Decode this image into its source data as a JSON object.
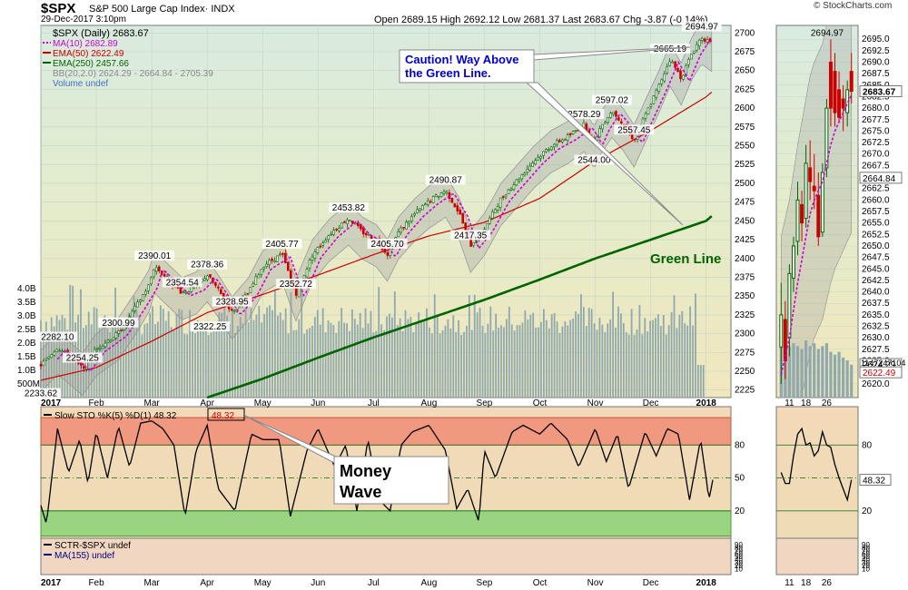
{
  "header": {
    "symbol": "$SPX",
    "name": "S&P 500 Large Cap Index· INDX",
    "date": "29-Dec-2017 3:10pm",
    "ohlc": "Open 2689.15  High 2692.12  Low 2681.37  Last 2683.67  Chg -3.87 (-0.14%)",
    "credit": "© StockCharts.com"
  },
  "legend": [
    {
      "text": "$SPX (Daily) 2683.67",
      "color": "#000000"
    },
    {
      "text": "MA(10) 2682.89",
      "color": "#d000d0"
    },
    {
      "text": "EMA(50) 2622.49",
      "color": "#cc0000"
    },
    {
      "text": "EMA(250) 2457.66",
      "color": "#006400"
    },
    {
      "text": "BB(20,2.0) 2624.29 - 2664.84 - 2705.39",
      "color": "#888888"
    },
    {
      "text": "Volume undef",
      "color": "#4070c0"
    }
  ],
  "annotations": {
    "caution_line1": "Caution! Way Above",
    "caution_line2": "the Green Line.",
    "green_line": "Green Line",
    "money_line1": "Money",
    "money_line2": "Wave"
  },
  "stoch_legend": {
    "text": "Slow STO %K(5) %D(1) 48.32",
    "value_box": "48.32"
  },
  "sctr_legend": {
    "text": "SCTR-$SPX undef",
    "ma": "MA(155) undef"
  },
  "chart_data": [
    {
      "type": "candlestick",
      "title": "$SPX (Daily)",
      "x_labels": [
        "2017",
        "Feb",
        "Mar",
        "Apr",
        "May",
        "Jun",
        "Jul",
        "Aug",
        "Sep",
        "Oct",
        "Nov",
        "Dec",
        "2018"
      ],
      "ylim": [
        2215,
        2710
      ],
      "y_ticks": [
        2225,
        2250,
        2275,
        2300,
        2325,
        2350,
        2375,
        2400,
        2425,
        2450,
        2475,
        2500,
        2525,
        2550,
        2575,
        2600,
        2625,
        2650,
        2675,
        2700
      ],
      "close_path": [
        {
          "m": 0.0,
          "v": 2258
        },
        {
          "m": 0.3,
          "v": 2282.1
        },
        {
          "m": 0.5,
          "v": 2270
        },
        {
          "m": 0.75,
          "v": 2254.25
        },
        {
          "m": 1.0,
          "v": 2280
        },
        {
          "m": 1.4,
          "v": 2300.99
        },
        {
          "m": 1.75,
          "v": 2340
        },
        {
          "m": 1.95,
          "v": 2365
        },
        {
          "m": 2.05,
          "v": 2390.01
        },
        {
          "m": 2.3,
          "v": 2372
        },
        {
          "m": 2.55,
          "v": 2354.54
        },
        {
          "m": 2.8,
          "v": 2362
        },
        {
          "m": 3.0,
          "v": 2378.36
        },
        {
          "m": 3.2,
          "v": 2358
        },
        {
          "m": 3.45,
          "v": 2328.95
        },
        {
          "m": 3.75,
          "v": 2355
        },
        {
          "m": 4.0,
          "v": 2390
        },
        {
          "m": 4.35,
          "v": 2405.77
        },
        {
          "m": 4.6,
          "v": 2352.72
        },
        {
          "m": 4.9,
          "v": 2405
        },
        {
          "m": 5.2,
          "v": 2432
        },
        {
          "m": 5.55,
          "v": 2453.82
        },
        {
          "m": 5.8,
          "v": 2435
        },
        {
          "m": 6.05,
          "v": 2425
        },
        {
          "m": 6.25,
          "v": 2405.7
        },
        {
          "m": 6.45,
          "v": 2435
        },
        {
          "m": 6.75,
          "v": 2460
        },
        {
          "m": 7.0,
          "v": 2476
        },
        {
          "m": 7.3,
          "v": 2490.87
        },
        {
          "m": 7.55,
          "v": 2460
        },
        {
          "m": 7.75,
          "v": 2417.35
        },
        {
          "m": 8.0,
          "v": 2440
        },
        {
          "m": 8.3,
          "v": 2480
        },
        {
          "m": 8.6,
          "v": 2505
        },
        {
          "m": 8.9,
          "v": 2530
        },
        {
          "m": 9.2,
          "v": 2550
        },
        {
          "m": 9.5,
          "v": 2562
        },
        {
          "m": 9.8,
          "v": 2578.29
        },
        {
          "m": 9.98,
          "v": 2555
        },
        {
          "m": 10.1,
          "v": 2575
        },
        {
          "m": 10.3,
          "v": 2597.02
        },
        {
          "m": 10.5,
          "v": 2580
        },
        {
          "m": 10.7,
          "v": 2557.45
        },
        {
          "m": 10.9,
          "v": 2590
        },
        {
          "m": 11.15,
          "v": 2630
        },
        {
          "m": 11.35,
          "v": 2665.19
        },
        {
          "m": 11.55,
          "v": 2640
        },
        {
          "m": 11.75,
          "v": 2675
        },
        {
          "m": 11.92,
          "v": 2694.97
        },
        {
          "m": 12.0,
          "v": 2690
        },
        {
          "m": 12.12,
          "v": 2683.67
        }
      ],
      "price_labels": [
        {
          "m": 0.3,
          "v": 2282.1,
          "text": "2282.10"
        },
        {
          "m": 0.75,
          "v": 2254.25,
          "text": "2254.25"
        },
        {
          "m": 0.0,
          "v": 2233.62,
          "text": "2233.62"
        },
        {
          "m": 1.4,
          "v": 2300.99,
          "text": "2300.99"
        },
        {
          "m": 2.05,
          "v": 2390.01,
          "text": "2390.01"
        },
        {
          "m": 2.55,
          "v": 2354.54,
          "text": "2354.54"
        },
        {
          "m": 3.0,
          "v": 2378.36,
          "text": "2378.36"
        },
        {
          "m": 3.05,
          "v": 2322.25,
          "text": "2322.25"
        },
        {
          "m": 3.45,
          "v": 2328.95,
          "text": "2328.95"
        },
        {
          "m": 4.35,
          "v": 2405.77,
          "text": "2405.77"
        },
        {
          "m": 4.6,
          "v": 2352.72,
          "text": "2352.72"
        },
        {
          "m": 5.55,
          "v": 2453.82,
          "text": "2453.82"
        },
        {
          "m": 6.25,
          "v": 2405.7,
          "text": "2405.70"
        },
        {
          "m": 7.3,
          "v": 2490.87,
          "text": "2490.87"
        },
        {
          "m": 7.75,
          "v": 2417.35,
          "text": "2417.35"
        },
        {
          "m": 9.98,
          "v": 2544.0,
          "text": "2544.00"
        },
        {
          "m": 9.8,
          "v": 2578.29,
          "text": "2578.29"
        },
        {
          "m": 10.3,
          "v": 2597.02,
          "text": "2597.02"
        },
        {
          "m": 10.7,
          "v": 2557.45,
          "text": "2557.45"
        },
        {
          "m": 11.35,
          "v": 2665.19,
          "text": "2665.19"
        },
        {
          "m": 11.92,
          "v": 2694.97,
          "text": "2694.97"
        }
      ],
      "ma10_offset": -8,
      "ema50_path": [
        {
          "m": 0.0,
          "v": 2238
        },
        {
          "m": 1.0,
          "v": 2255
        },
        {
          "m": 2.0,
          "v": 2290
        },
        {
          "m": 3.0,
          "v": 2328
        },
        {
          "m": 4.0,
          "v": 2352
        },
        {
          "m": 5.0,
          "v": 2378
        },
        {
          "m": 6.0,
          "v": 2405
        },
        {
          "m": 7.0,
          "v": 2430
        },
        {
          "m": 8.0,
          "v": 2448
        },
        {
          "m": 9.0,
          "v": 2480
        },
        {
          "m": 10.0,
          "v": 2530
        },
        {
          "m": 11.0,
          "v": 2570
        },
        {
          "m": 12.0,
          "v": 2615
        },
        {
          "m": 12.12,
          "v": 2622.49
        }
      ],
      "ema250_path": [
        {
          "m": 3.0,
          "v": 2215
        },
        {
          "m": 4.0,
          "v": 2240
        },
        {
          "m": 5.0,
          "v": 2268
        },
        {
          "m": 6.0,
          "v": 2295
        },
        {
          "m": 7.0,
          "v": 2320
        },
        {
          "m": 8.0,
          "v": 2345
        },
        {
          "m": 9.0,
          "v": 2372
        },
        {
          "m": 10.0,
          "v": 2400
        },
        {
          "m": 11.0,
          "v": 2425
        },
        {
          "m": 12.0,
          "v": 2450
        },
        {
          "m": 12.12,
          "v": 2457.66
        }
      ],
      "bb_half_width": 28,
      "volume_ticks": [
        "4.0B",
        "3.5B",
        "3.0B",
        "2.5B",
        "2.0B",
        "1.5B",
        "1.0B",
        "500M"
      ],
      "volume_tick_values": [
        4.0,
        3.5,
        3.0,
        2.5,
        2.0,
        1.5,
        1.0,
        0.5
      ],
      "volume_typical_b": [
        2.3,
        3.4
      ],
      "volume_max_b": 4.2
    },
    {
      "type": "line",
      "title": "Slow STO %K(5) %D(1)",
      "ylim": [
        -5,
        115
      ],
      "y_ticks": [
        80,
        50,
        20
      ],
      "bands": {
        "overbought": [
          80,
          105
        ],
        "oversold": [
          -3,
          20
        ]
      },
      "k_path": [
        {
          "m": 0.0,
          "v": 25
        },
        {
          "m": 0.1,
          "v": 8
        },
        {
          "m": 0.3,
          "v": 95
        },
        {
          "m": 0.5,
          "v": 55
        },
        {
          "m": 0.7,
          "v": 85
        },
        {
          "m": 0.85,
          "v": 45
        },
        {
          "m": 1.0,
          "v": 92
        },
        {
          "m": 1.2,
          "v": 50
        },
        {
          "m": 1.4,
          "v": 97
        },
        {
          "m": 1.6,
          "v": 60
        },
        {
          "m": 1.8,
          "v": 100
        },
        {
          "m": 2.0,
          "v": 102
        },
        {
          "m": 2.2,
          "v": 95
        },
        {
          "m": 2.4,
          "v": 80
        },
        {
          "m": 2.6,
          "v": 15
        },
        {
          "m": 2.8,
          "v": 75
        },
        {
          "m": 3.0,
          "v": 98
        },
        {
          "m": 3.2,
          "v": 40
        },
        {
          "m": 3.5,
          "v": 20
        },
        {
          "m": 3.8,
          "v": 90
        },
        {
          "m": 4.0,
          "v": 85
        },
        {
          "m": 4.3,
          "v": 85
        },
        {
          "m": 4.5,
          "v": 15
        },
        {
          "m": 4.8,
          "v": 75
        },
        {
          "m": 5.0,
          "v": 95
        },
        {
          "m": 5.3,
          "v": 60
        },
        {
          "m": 5.5,
          "v": 80
        },
        {
          "m": 5.7,
          "v": 20
        },
        {
          "m": 5.9,
          "v": 85
        },
        {
          "m": 6.1,
          "v": 30
        },
        {
          "m": 6.3,
          "v": 20
        },
        {
          "m": 6.5,
          "v": 80
        },
        {
          "m": 6.7,
          "v": 92
        },
        {
          "m": 7.0,
          "v": 98
        },
        {
          "m": 7.3,
          "v": 75
        },
        {
          "m": 7.5,
          "v": 22
        },
        {
          "m": 7.7,
          "v": 40
        },
        {
          "m": 7.9,
          "v": 10
        },
        {
          "m": 8.0,
          "v": 75
        },
        {
          "m": 8.2,
          "v": 50
        },
        {
          "m": 8.5,
          "v": 92
        },
        {
          "m": 8.7,
          "v": 98
        },
        {
          "m": 9.0,
          "v": 90
        },
        {
          "m": 9.2,
          "v": 100
        },
        {
          "m": 9.5,
          "v": 85
        },
        {
          "m": 9.7,
          "v": 60
        },
        {
          "m": 10.0,
          "v": 95
        },
        {
          "m": 10.2,
          "v": 65
        },
        {
          "m": 10.4,
          "v": 90
        },
        {
          "m": 10.6,
          "v": 40
        },
        {
          "m": 10.9,
          "v": 92
        },
        {
          "m": 11.1,
          "v": 70
        },
        {
          "m": 11.3,
          "v": 95
        },
        {
          "m": 11.5,
          "v": 90
        },
        {
          "m": 11.7,
          "v": 30
        },
        {
          "m": 11.9,
          "v": 85
        },
        {
          "m": 12.0,
          "v": 50
        },
        {
          "m": 12.05,
          "v": 30
        },
        {
          "m": 12.12,
          "v": 48.32
        }
      ],
      "last_value": 48.32
    },
    {
      "type": "line",
      "title": "SCTR-$SPX",
      "y_ticks": [
        "90",
        "80",
        "70",
        "60",
        "50",
        "40",
        "30",
        "20",
        "10"
      ],
      "values": []
    },
    {
      "type": "candlestick",
      "title": "$SPX zoom (last weeks)",
      "x_labels": [
        "11",
        "18",
        "26"
      ],
      "ylim": [
        2617,
        2698
      ],
      "y_ticks": [
        2620.0,
        2622.5,
        2625.0,
        2627.5,
        2630.0,
        2632.5,
        2635.0,
        2637.5,
        2640.0,
        2642.5,
        2645.0,
        2647.5,
        2650.0,
        2652.5,
        2655.0,
        2657.5,
        2660.0,
        2662.5,
        2665.0,
        2667.5,
        2670.0,
        2672.5,
        2675.0,
        2677.5,
        2680.0,
        2682.5,
        2685.0,
        2687.5,
        2690.0,
        2692.5,
        2695.0
      ],
      "high_label": "2694.97",
      "last_label": "2683.67",
      "bb_mid_label": "2664.84",
      "bb_low_label": "2624.29",
      "ema50_label": "2622.49",
      "volume_label": "1147247104",
      "candles": [
        {
          "o": 2628,
          "h": 2642,
          "l": 2620,
          "c": 2635
        },
        {
          "o": 2634,
          "h": 2638,
          "l": 2621,
          "c": 2625
        },
        {
          "o": 2630,
          "h": 2646,
          "l": 2626,
          "c": 2644
        },
        {
          "o": 2643,
          "h": 2652,
          "l": 2640,
          "c": 2650
        },
        {
          "o": 2651,
          "h": 2664,
          "l": 2648,
          "c": 2660
        },
        {
          "o": 2659,
          "h": 2662,
          "l": 2651,
          "c": 2655
        },
        {
          "o": 2656,
          "h": 2672,
          "l": 2654,
          "c": 2668
        },
        {
          "o": 2667,
          "h": 2673,
          "l": 2660,
          "c": 2664
        },
        {
          "o": 2663,
          "h": 2670,
          "l": 2658,
          "c": 2662
        },
        {
          "o": 2661,
          "h": 2666,
          "l": 2650,
          "c": 2652
        },
        {
          "o": 2653,
          "h": 2668,
          "l": 2652,
          "c": 2666
        },
        {
          "o": 2667,
          "h": 2682,
          "l": 2665,
          "c": 2680
        },
        {
          "o": 2690,
          "h": 2694.97,
          "l": 2676,
          "c": 2680
        },
        {
          "o": 2688,
          "h": 2692,
          "l": 2676,
          "c": 2679
        },
        {
          "o": 2684,
          "h": 2688,
          "l": 2677,
          "c": 2678
        },
        {
          "o": 2682,
          "h": 2685,
          "l": 2675,
          "c": 2680
        },
        {
          "o": 2679,
          "h": 2686,
          "l": 2676,
          "c": 2684
        },
        {
          "o": 2688,
          "h": 2692,
          "l": 2681,
          "c": 2683.67
        }
      ],
      "ma10": [
        2622,
        2626,
        2630,
        2636,
        2642,
        2647,
        2652,
        2657,
        2660,
        2662,
        2664,
        2668,
        2672,
        2675,
        2677,
        2679,
        2681,
        2682.89
      ],
      "volume_b": [
        1.8,
        1.9,
        1.8,
        1.9,
        1.8,
        1.7,
        2.0,
        1.8,
        1.9,
        1.7,
        1.8,
        1.9,
        1.6,
        1.5,
        1.6,
        1.4,
        1.3,
        1.15
      ],
      "stoch_k": [
        55,
        45,
        45,
        70,
        90,
        95,
        80,
        82,
        70,
        75,
        92,
        80,
        78,
        62,
        50,
        40,
        30,
        48.32
      ]
    }
  ],
  "colors": {
    "up": "#006400",
    "down": "#cc0000",
    "ma10": "#d000d0",
    "ema50": "#cc0000",
    "ema250": "#006400",
    "bb": "#909090",
    "bb_fill": "#a0a0a0",
    "volume": "#8fa9ad",
    "annot_blue": "#0000cc",
    "green_text": "#006400",
    "stoch_line": "#000000",
    "overbought": "#f0907a",
    "oversold": "#8fd47a"
  }
}
